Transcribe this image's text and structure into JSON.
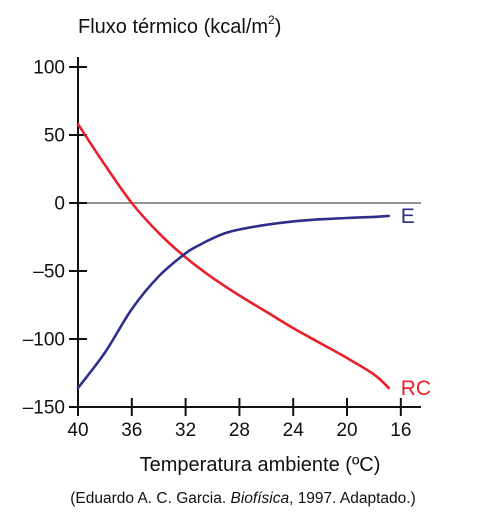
{
  "source": {
    "prefix": "(Eduardo A. C. Garcia. ",
    "italic": "Biofísica",
    "suffix": ", 1997. Adaptado.)"
  },
  "chart_data": {
    "type": "line",
    "title": "",
    "ylabel": "Fluxo térmico (kcal/m²)",
    "ylabel_parts": {
      "base": "Fluxo térmico (kcal/m",
      "sup": "2",
      "close": ")"
    },
    "xlabel": "Temperatura ambiente (ºC)",
    "xlim": [
      40,
      14.5
    ],
    "ylim": [
      -150,
      100
    ],
    "x_ticks": [
      40,
      36,
      32,
      28,
      24,
      20,
      16
    ],
    "y_ticks": [
      100,
      50,
      0,
      -50,
      -100,
      -150
    ],
    "y_tick_labels": [
      "100",
      "50",
      "0",
      "–50",
      "–100",
      "–150"
    ],
    "zero_line": true,
    "grid": false,
    "series": [
      {
        "name": "RC",
        "color": "#e8202a",
        "x": [
          40,
          38,
          36,
          34,
          32,
          30,
          28,
          26,
          24,
          22,
          20,
          18,
          16.9
        ],
        "y": [
          58,
          28,
          0,
          -22,
          -40,
          -55,
          -68,
          -80,
          -92,
          -103,
          -114,
          -126,
          -136
        ]
      },
      {
        "name": "E",
        "color": "#2e2f8a",
        "x": [
          40,
          38,
          36,
          34,
          32,
          31,
          30,
          29,
          28,
          26,
          24,
          22,
          20,
          18,
          16.9
        ],
        "y": [
          -136,
          -110,
          -78,
          -54,
          -37,
          -31,
          -26,
          -22,
          -19.5,
          -16,
          -13.5,
          -12,
          -11,
          -10.2,
          -9.5
        ]
      }
    ]
  }
}
